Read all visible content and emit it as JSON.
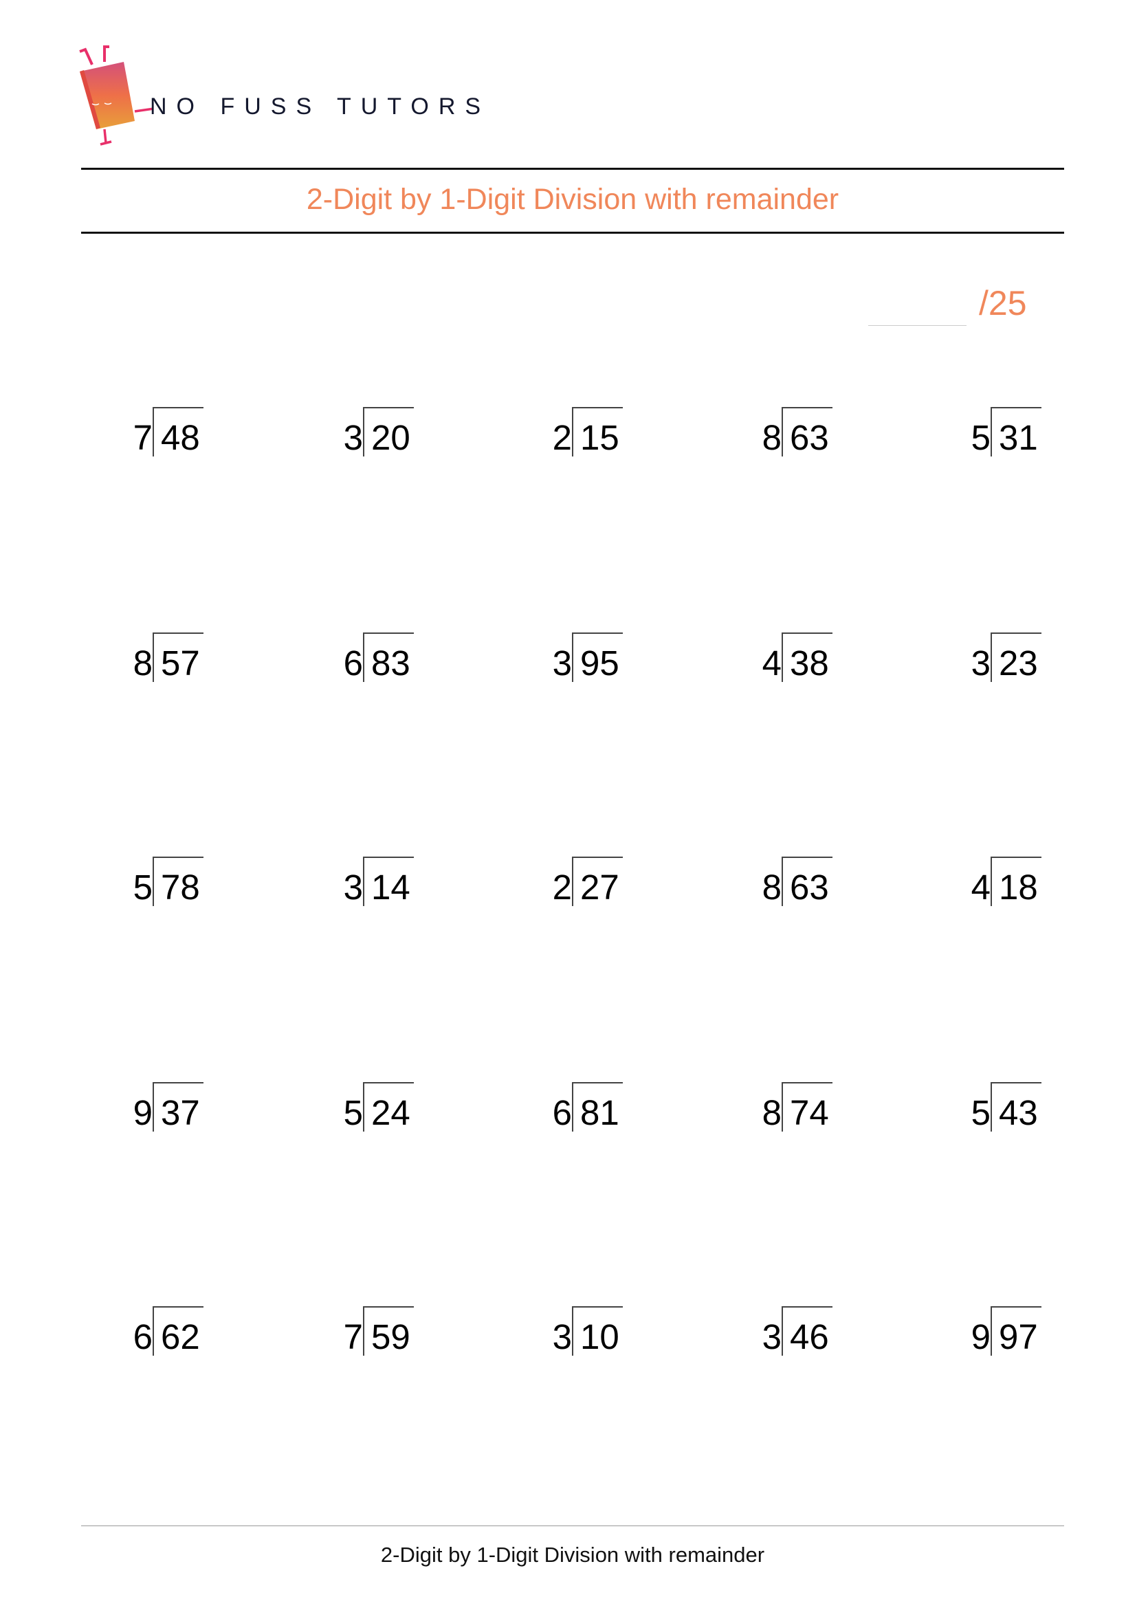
{
  "header": {
    "brand": "NO FUSS TUTORS",
    "title": "2-Digit by 1-Digit Division with remainder"
  },
  "score": {
    "total_label": "/25"
  },
  "colors": {
    "accent": "#f0875a",
    "brand_text": "#14182e"
  },
  "problems": [
    {
      "divisor": "7",
      "dividend": "48"
    },
    {
      "divisor": "3",
      "dividend": "20"
    },
    {
      "divisor": "2",
      "dividend": "15"
    },
    {
      "divisor": "8",
      "dividend": "63"
    },
    {
      "divisor": "5",
      "dividend": "31"
    },
    {
      "divisor": "8",
      "dividend": "57"
    },
    {
      "divisor": "6",
      "dividend": "83"
    },
    {
      "divisor": "3",
      "dividend": "95"
    },
    {
      "divisor": "4",
      "dividend": "38"
    },
    {
      "divisor": "3",
      "dividend": "23"
    },
    {
      "divisor": "5",
      "dividend": "78"
    },
    {
      "divisor": "3",
      "dividend": "14"
    },
    {
      "divisor": "2",
      "dividend": "27"
    },
    {
      "divisor": "8",
      "dividend": "63"
    },
    {
      "divisor": "4",
      "dividend": "18"
    },
    {
      "divisor": "9",
      "dividend": "37"
    },
    {
      "divisor": "5",
      "dividend": "24"
    },
    {
      "divisor": "6",
      "dividend": "81"
    },
    {
      "divisor": "8",
      "dividend": "74"
    },
    {
      "divisor": "5",
      "dividend": "43"
    },
    {
      "divisor": "6",
      "dividend": "62"
    },
    {
      "divisor": "7",
      "dividend": "59"
    },
    {
      "divisor": "3",
      "dividend": "10"
    },
    {
      "divisor": "3",
      "dividend": "46"
    },
    {
      "divisor": "9",
      "dividend": "97"
    }
  ],
  "footer": {
    "text": "2-Digit by 1-Digit Division with remainder"
  }
}
